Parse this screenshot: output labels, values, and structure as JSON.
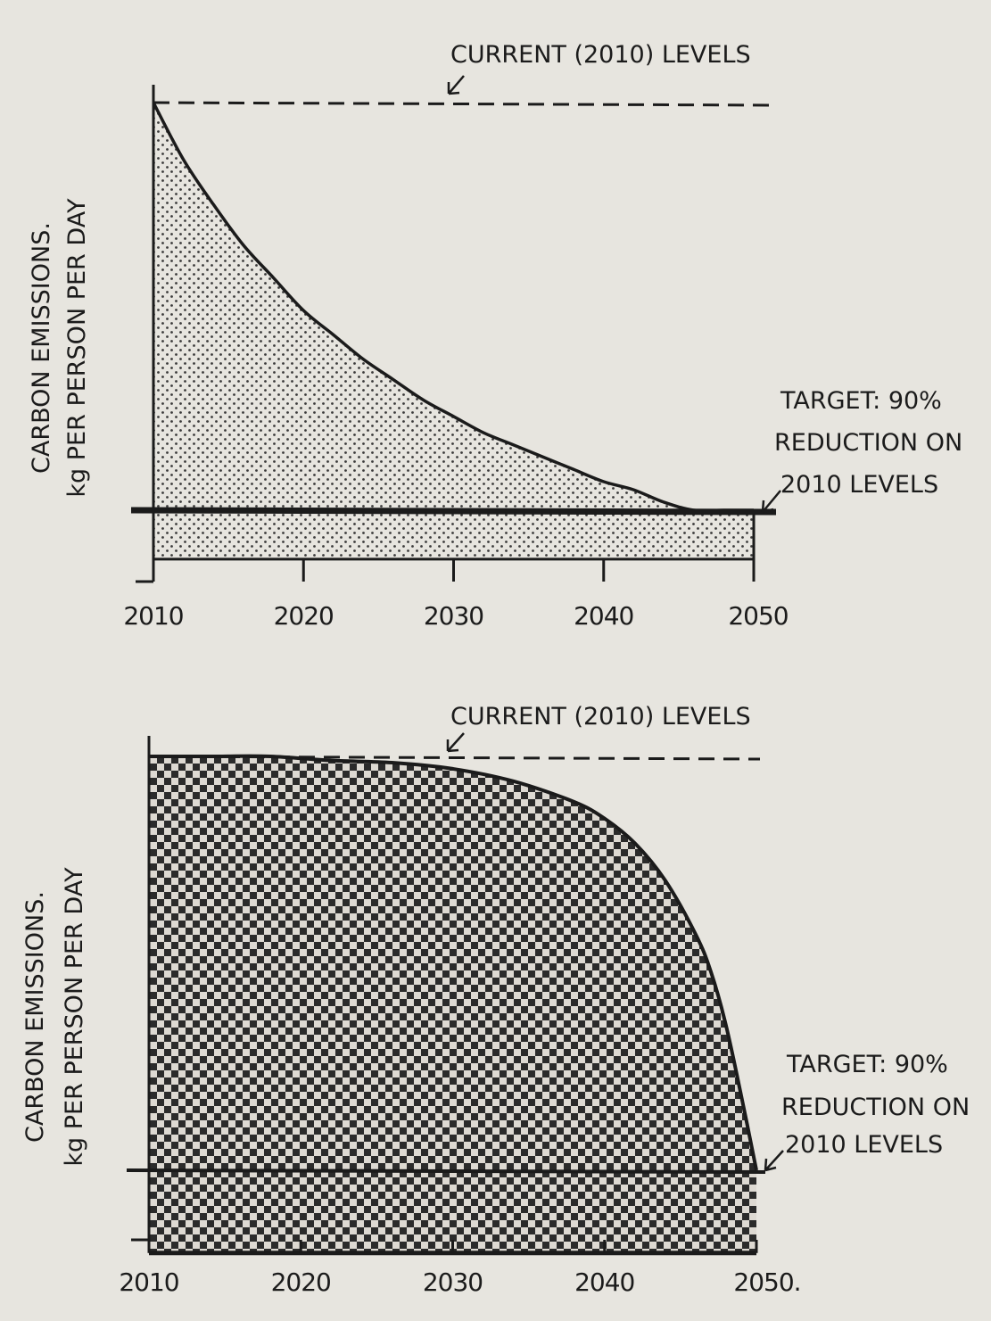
{
  "colors": {
    "ink": "#1b1b1b",
    "paper": "#e7e5df",
    "fill_light": "#d6d4ce",
    "fill_dark": "#3a3a3a"
  },
  "chart_data": [
    {
      "type": "area",
      "title": "",
      "xlabel": "",
      "ylabel": [
        "CARBON EMISSIONS.",
        "kg PER PERSON PER DAY"
      ],
      "x_ticks": [
        "2010",
        "2020",
        "2030",
        "2040",
        "2050"
      ],
      "xlim": [
        2010,
        2050
      ],
      "ylim": [
        -0.12,
        1.0
      ],
      "grid": false,
      "fill_pattern": "fine-dots",
      "series": [
        {
          "x": [
            2010,
            2012,
            2014,
            2016,
            2018,
            2020,
            2022,
            2024,
            2026,
            2028,
            2030,
            2032,
            2034,
            2036,
            2038,
            2040,
            2042,
            2044,
            2046,
            2048,
            2050
          ],
          "values": [
            1.0,
            0.86,
            0.75,
            0.65,
            0.57,
            0.49,
            0.43,
            0.37,
            0.32,
            0.27,
            0.23,
            0.19,
            0.16,
            0.13,
            0.1,
            0.07,
            0.05,
            0.02,
            0.0,
            0.0,
            0.0
          ]
        }
      ],
      "reference_lines": {
        "current": {
          "y": 1.0,
          "label": "CURRENT (2010) LEVELS"
        },
        "target": {
          "y": 0.0,
          "label": [
            "TARGET: 90%",
            "REDUCTION ON",
            "2010 LEVELS"
          ]
        }
      }
    },
    {
      "type": "area",
      "title": "",
      "xlabel": "",
      "ylabel": [
        "CARBON EMISSIONS.",
        "kg PER PERSON PER DAY"
      ],
      "x_ticks": [
        "2010",
        "2020",
        "2030",
        "2040",
        "2050."
      ],
      "xlim": [
        2010,
        2050
      ],
      "ylim": [
        -0.2,
        1.0
      ],
      "grid": false,
      "fill_pattern": "checkerboard",
      "series": [
        {
          "x": [
            2010,
            2014,
            2018,
            2022,
            2026,
            2030,
            2034,
            2038,
            2040,
            2042,
            2044,
            2046,
            2047,
            2048,
            2049,
            2050
          ],
          "values": [
            1.0,
            1.0,
            1.0,
            0.99,
            0.985,
            0.97,
            0.94,
            0.89,
            0.85,
            0.79,
            0.7,
            0.57,
            0.48,
            0.35,
            0.18,
            0.0
          ]
        }
      ],
      "reference_lines": {
        "current": {
          "y": 1.0,
          "label": "CURRENT (2010) LEVELS"
        },
        "target": {
          "y": 0.0,
          "label": [
            "TARGET: 90%",
            "REDUCTION ON",
            "2010 LEVELS"
          ]
        }
      }
    }
  ]
}
